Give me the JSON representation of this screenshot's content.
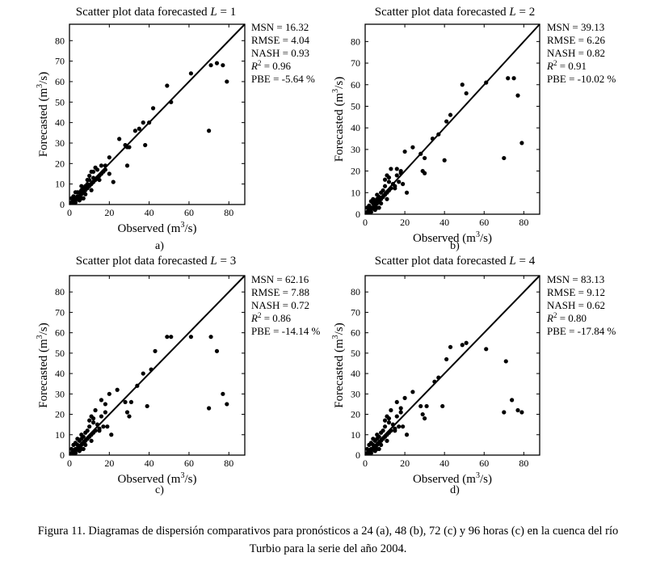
{
  "chart_data": [
    {
      "type": "scatter",
      "title_prefix": "Scatter plot data forecasted",
      "title_var": "L",
      "title_value": "1",
      "xlabel": "Observed (m",
      "ylabel": "Forecasted (m",
      "unit_exp": "3",
      "unit_tail": "/s)",
      "xlim": [
        0,
        88
      ],
      "ylim": [
        0,
        88
      ],
      "xticks": [
        0,
        20,
        40,
        60,
        80
      ],
      "yticks": [
        0,
        10,
        20,
        30,
        40,
        50,
        60,
        70,
        80
      ],
      "panel_label": "a)",
      "stats": [
        {
          "label": "MSN = 16.32"
        },
        {
          "label": "RMSE = 4.04"
        },
        {
          "label": "NASH = 0.93"
        },
        {
          "label": "R",
          "sup": "2",
          "rest": " = 0.96"
        },
        {
          "label": "PBE = -5.64 %"
        }
      ],
      "points": [
        [
          1,
          1
        ],
        [
          2,
          2
        ],
        [
          2,
          1
        ],
        [
          3,
          3
        ],
        [
          3,
          2
        ],
        [
          4,
          3
        ],
        [
          4,
          4
        ],
        [
          5,
          4
        ],
        [
          5,
          6
        ],
        [
          6,
          5
        ],
        [
          6,
          7
        ],
        [
          7,
          6
        ],
        [
          7,
          8
        ],
        [
          8,
          7
        ],
        [
          8,
          9
        ],
        [
          9,
          8
        ],
        [
          9,
          10
        ],
        [
          10,
          9
        ],
        [
          10,
          12
        ],
        [
          11,
          10
        ],
        [
          12,
          11
        ],
        [
          12,
          13
        ],
        [
          13,
          12
        ],
        [
          14,
          13
        ],
        [
          15,
          14
        ],
        [
          16,
          15
        ],
        [
          17,
          16
        ],
        [
          18,
          17
        ],
        [
          4,
          6
        ],
        [
          6,
          3
        ],
        [
          8,
          5
        ],
        [
          10,
          14
        ],
        [
          11,
          16
        ],
        [
          13,
          18
        ],
        [
          15,
          12
        ],
        [
          16,
          19
        ],
        [
          18,
          19
        ],
        [
          20,
          23
        ],
        [
          20,
          15
        ],
        [
          22,
          11
        ],
        [
          25,
          32
        ],
        [
          28,
          29
        ],
        [
          29,
          28
        ],
        [
          29,
          19
        ],
        [
          30,
          28
        ],
        [
          33,
          36
        ],
        [
          35,
          37
        ],
        [
          37,
          40
        ],
        [
          38,
          29
        ],
        [
          40,
          40
        ],
        [
          42,
          47
        ],
        [
          49,
          58
        ],
        [
          51,
          50
        ],
        [
          61,
          64
        ],
        [
          70,
          36
        ],
        [
          71,
          68
        ],
        [
          74,
          69
        ],
        [
          77,
          68
        ],
        [
          79,
          60
        ],
        [
          1,
          3
        ],
        [
          3,
          1
        ],
        [
          2,
          4
        ],
        [
          5,
          2
        ],
        [
          7,
          3
        ],
        [
          9,
          12
        ],
        [
          12,
          16
        ],
        [
          14,
          17
        ],
        [
          3,
          6
        ],
        [
          6,
          9
        ],
        [
          11,
          7
        ]
      ]
    },
    {
      "type": "scatter",
      "title_prefix": "Scatter plot data forecasted",
      "title_var": "L",
      "title_value": "2",
      "xlabel": "Observed (m",
      "ylabel": "Forecasted (m",
      "unit_exp": "3",
      "unit_tail": "/s)",
      "xlim": [
        0,
        88
      ],
      "ylim": [
        0,
        88
      ],
      "xticks": [
        0,
        20,
        40,
        60,
        80
      ],
      "yticks": [
        0,
        10,
        20,
        30,
        40,
        50,
        60,
        70,
        80
      ],
      "panel_label": "b)",
      "stats": [
        {
          "label": "MSN = 39.13"
        },
        {
          "label": "RMSE = 6.26"
        },
        {
          "label": "NASH = 0.82"
        },
        {
          "label": "R",
          "sup": "2",
          "rest": " = 0.91"
        },
        {
          "label": "PBE = -10.02 %"
        }
      ],
      "points": [
        [
          1,
          1
        ],
        [
          2,
          2
        ],
        [
          2,
          1
        ],
        [
          3,
          3
        ],
        [
          3,
          2
        ],
        [
          4,
          3
        ],
        [
          4,
          5
        ],
        [
          5,
          4
        ],
        [
          5,
          6
        ],
        [
          6,
          5
        ],
        [
          6,
          7
        ],
        [
          7,
          6
        ],
        [
          7,
          8
        ],
        [
          8,
          7
        ],
        [
          8,
          10
        ],
        [
          9,
          8
        ],
        [
          9,
          11
        ],
        [
          10,
          9
        ],
        [
          10,
          13
        ],
        [
          11,
          10
        ],
        [
          12,
          11
        ],
        [
          12,
          15
        ],
        [
          13,
          12
        ],
        [
          14,
          14
        ],
        [
          15,
          13
        ],
        [
          16,
          18
        ],
        [
          17,
          15
        ],
        [
          18,
          19
        ],
        [
          4,
          7
        ],
        [
          6,
          3
        ],
        [
          8,
          5
        ],
        [
          10,
          16
        ],
        [
          11,
          18
        ],
        [
          13,
          21
        ],
        [
          15,
          12
        ],
        [
          16,
          21
        ],
        [
          18,
          20
        ],
        [
          19,
          14
        ],
        [
          21,
          10
        ],
        [
          20,
          29
        ],
        [
          24,
          31
        ],
        [
          28,
          28
        ],
        [
          29,
          20
        ],
        [
          30,
          19
        ],
        [
          30,
          26
        ],
        [
          34,
          35
        ],
        [
          37,
          37
        ],
        [
          40,
          25
        ],
        [
          41,
          43
        ],
        [
          43,
          46
        ],
        [
          49,
          60
        ],
        [
          51,
          56
        ],
        [
          61,
          61
        ],
        [
          70,
          26
        ],
        [
          72,
          63
        ],
        [
          75,
          63
        ],
        [
          77,
          55
        ],
        [
          79,
          33
        ],
        [
          1,
          3
        ],
        [
          3,
          1
        ],
        [
          2,
          4
        ],
        [
          5,
          2
        ],
        [
          7,
          3
        ],
        [
          12,
          17
        ],
        [
          3,
          6
        ],
        [
          6,
          9
        ],
        [
          11,
          7
        ]
      ]
    },
    {
      "type": "scatter",
      "title_prefix": "Scatter plot data forecasted",
      "title_var": "L",
      "title_value": "3",
      "xlabel": "Observed (m",
      "ylabel": "Forecasted (m",
      "unit_exp": "3",
      "unit_tail": "/s)",
      "xlim": [
        0,
        88
      ],
      "ylim": [
        0,
        88
      ],
      "xticks": [
        0,
        20,
        40,
        60,
        80
      ],
      "yticks": [
        0,
        10,
        20,
        30,
        40,
        50,
        60,
        70,
        80
      ],
      "panel_label": "c)",
      "stats": [
        {
          "label": "MSN = 62.16"
        },
        {
          "label": "RMSE = 7.88"
        },
        {
          "label": "NASH = 0.72"
        },
        {
          "label": "R",
          "sup": "2",
          "rest": " = 0.86"
        },
        {
          "label": "PBE = -14.14 %"
        }
      ],
      "points": [
        [
          1,
          1
        ],
        [
          2,
          2
        ],
        [
          2,
          1
        ],
        [
          3,
          3
        ],
        [
          3,
          2
        ],
        [
          4,
          3
        ],
        [
          4,
          5
        ],
        [
          5,
          4
        ],
        [
          5,
          7
        ],
        [
          6,
          5
        ],
        [
          6,
          8
        ],
        [
          7,
          6
        ],
        [
          7,
          9
        ],
        [
          8,
          7
        ],
        [
          8,
          11
        ],
        [
          9,
          8
        ],
        [
          9,
          12
        ],
        [
          10,
          9
        ],
        [
          10,
          14
        ],
        [
          11,
          10
        ],
        [
          12,
          11
        ],
        [
          12,
          16
        ],
        [
          13,
          12
        ],
        [
          14,
          15
        ],
        [
          15,
          13
        ],
        [
          16,
          19
        ],
        [
          17,
          14
        ],
        [
          18,
          21
        ],
        [
          4,
          8
        ],
        [
          6,
          3
        ],
        [
          8,
          5
        ],
        [
          10,
          17
        ],
        [
          11,
          19
        ],
        [
          13,
          22
        ],
        [
          15,
          12
        ],
        [
          16,
          27
        ],
        [
          18,
          25
        ],
        [
          19,
          14
        ],
        [
          21,
          10
        ],
        [
          20,
          30
        ],
        [
          24,
          32
        ],
        [
          28,
          26
        ],
        [
          29,
          21
        ],
        [
          30,
          19
        ],
        [
          31,
          26
        ],
        [
          34,
          34
        ],
        [
          37,
          40
        ],
        [
          39,
          24
        ],
        [
          41,
          42
        ],
        [
          43,
          51
        ],
        [
          49,
          58
        ],
        [
          51,
          58
        ],
        [
          61,
          58
        ],
        [
          70,
          23
        ],
        [
          71,
          58
        ],
        [
          74,
          51
        ],
        [
          77,
          30
        ],
        [
          79,
          25
        ],
        [
          1,
          3
        ],
        [
          3,
          1
        ],
        [
          2,
          5
        ],
        [
          5,
          2
        ],
        [
          7,
          3
        ],
        [
          12,
          18
        ],
        [
          3,
          6
        ],
        [
          6,
          10
        ],
        [
          11,
          7
        ]
      ]
    },
    {
      "type": "scatter",
      "title_prefix": "Scatter plot data forecasted",
      "title_var": "L",
      "title_value": "4",
      "xlabel": "Observed (m",
      "ylabel": "Forecasted (m",
      "unit_exp": "3",
      "unit_tail": "/s)",
      "xlim": [
        0,
        88
      ],
      "ylim": [
        0,
        88
      ],
      "xticks": [
        0,
        20,
        40,
        60,
        80
      ],
      "yticks": [
        0,
        10,
        20,
        30,
        40,
        50,
        60,
        70,
        80
      ],
      "panel_label": "d)",
      "stats": [
        {
          "label": "MSN = 83.13"
        },
        {
          "label": "RMSE = 9.12"
        },
        {
          "label": "NASH = 0.62"
        },
        {
          "label": "R",
          "sup": "2",
          "rest": " = 0.80"
        },
        {
          "label": "PBE = -17.84 %"
        }
      ],
      "points": [
        [
          1,
          1
        ],
        [
          2,
          2
        ],
        [
          2,
          1
        ],
        [
          3,
          3
        ],
        [
          3,
          2
        ],
        [
          4,
          3
        ],
        [
          4,
          5
        ],
        [
          5,
          4
        ],
        [
          5,
          7
        ],
        [
          6,
          5
        ],
        [
          6,
          8
        ],
        [
          7,
          6
        ],
        [
          7,
          9
        ],
        [
          8,
          7
        ],
        [
          8,
          11
        ],
        [
          9,
          8
        ],
        [
          9,
          12
        ],
        [
          10,
          9
        ],
        [
          10,
          14
        ],
        [
          11,
          10
        ],
        [
          12,
          11
        ],
        [
          12,
          16
        ],
        [
          13,
          12
        ],
        [
          14,
          15
        ],
        [
          15,
          13
        ],
        [
          16,
          19
        ],
        [
          17,
          14
        ],
        [
          18,
          21
        ],
        [
          4,
          8
        ],
        [
          6,
          3
        ],
        [
          8,
          5
        ],
        [
          10,
          17
        ],
        [
          11,
          19
        ],
        [
          13,
          22
        ],
        [
          15,
          12
        ],
        [
          16,
          26
        ],
        [
          18,
          23
        ],
        [
          19,
          14
        ],
        [
          21,
          10
        ],
        [
          20,
          28
        ],
        [
          24,
          31
        ],
        [
          28,
          24
        ],
        [
          29,
          20
        ],
        [
          30,
          18
        ],
        [
          31,
          24
        ],
        [
          35,
          36
        ],
        [
          37,
          38
        ],
        [
          39,
          24
        ],
        [
          41,
          47
        ],
        [
          43,
          53
        ],
        [
          49,
          54
        ],
        [
          51,
          55
        ],
        [
          61,
          52
        ],
        [
          70,
          21
        ],
        [
          71,
          46
        ],
        [
          74,
          27
        ],
        [
          77,
          22
        ],
        [
          79,
          21
        ],
        [
          1,
          3
        ],
        [
          3,
          1
        ],
        [
          2,
          5
        ],
        [
          5,
          2
        ],
        [
          7,
          3
        ],
        [
          12,
          18
        ],
        [
          3,
          6
        ],
        [
          6,
          10
        ],
        [
          11,
          7
        ]
      ]
    }
  ],
  "caption": {
    "line1": "Figura 11. Diagramas de dispersión comparativos para pronósticos a 24 (a), 48 (b), 72 (c) y 96 horas (c) en la cuenca del río",
    "line2": "Turbio para la serie del año 2004."
  },
  "colors": {
    "ink": "#000000",
    "background": "#ffffff"
  }
}
